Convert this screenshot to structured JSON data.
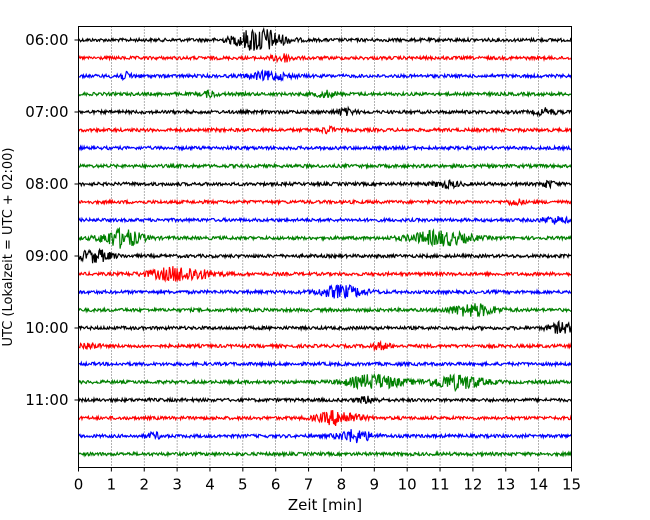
{
  "chart_data": {
    "type": "line",
    "title": "",
    "xlabel": "Zeit  [min]",
    "ylabel": "UTC (Lokalzeit = UTC + 02:00)",
    "xlim": [
      0,
      15
    ],
    "x_ticks": [
      "0",
      "1",
      "2",
      "3",
      "4",
      "5",
      "6",
      "7",
      "8",
      "9",
      "10",
      "11",
      "12",
      "13",
      "14",
      "15"
    ],
    "y_tick_labels": [
      "06:00",
      "07:00",
      "08:00",
      "09:00",
      "10:00",
      "11:00"
    ],
    "grid": "vertical dotted at each minute",
    "trace_colors": [
      "#000000",
      "#ff0000",
      "#0000ff",
      "#008000"
    ],
    "series": [
      {
        "start": "06:00",
        "color": "#000000",
        "events": [
          {
            "t": 5.5,
            "amp": 12,
            "w": 0.7
          }
        ]
      },
      {
        "start": "06:15",
        "color": "#ff0000",
        "events": [
          {
            "t": 6.2,
            "amp": 4,
            "w": 0.3
          }
        ]
      },
      {
        "start": "06:30",
        "color": "#0000ff",
        "events": [
          {
            "t": 5.8,
            "amp": 4,
            "w": 0.6
          },
          {
            "t": 1.4,
            "amp": 3,
            "w": 0.3
          }
        ]
      },
      {
        "start": "06:45",
        "color": "#008000",
        "events": [
          {
            "t": 4.0,
            "amp": 3,
            "w": 0.2
          },
          {
            "t": 7.5,
            "amp": 3,
            "w": 0.3
          }
        ]
      },
      {
        "start": "07:00",
        "color": "#000000",
        "events": [
          {
            "t": 8.1,
            "amp": 3,
            "w": 0.3
          },
          {
            "t": 14.2,
            "amp": 3,
            "w": 0.3
          }
        ]
      },
      {
        "start": "07:15",
        "color": "#ff0000",
        "events": [
          {
            "t": 7.6,
            "amp": 3,
            "w": 0.2
          }
        ]
      },
      {
        "start": "07:30",
        "color": "#0000ff",
        "events": []
      },
      {
        "start": "07:45",
        "color": "#008000",
        "events": []
      },
      {
        "start": "08:00",
        "color": "#000000",
        "events": [
          {
            "t": 11.2,
            "amp": 3,
            "w": 0.4
          },
          {
            "t": 14.3,
            "amp": 3,
            "w": 0.2
          }
        ]
      },
      {
        "start": "08:15",
        "color": "#ff0000",
        "events": [
          {
            "t": 13.3,
            "amp": 3,
            "w": 0.2
          }
        ]
      },
      {
        "start": "08:30",
        "color": "#0000ff",
        "events": [
          {
            "t": 14.5,
            "amp": 3,
            "w": 0.4
          }
        ]
      },
      {
        "start": "08:45",
        "color": "#008000",
        "events": [
          {
            "t": 1.3,
            "amp": 9,
            "w": 0.6
          },
          {
            "t": 11.0,
            "amp": 7,
            "w": 0.9
          }
        ]
      },
      {
        "start": "09:00",
        "color": "#000000",
        "events": [
          {
            "t": 0.5,
            "amp": 6,
            "w": 0.5
          }
        ]
      },
      {
        "start": "09:15",
        "color": "#ff0000",
        "events": [
          {
            "t": 3.1,
            "amp": 7,
            "w": 0.9
          }
        ]
      },
      {
        "start": "09:30",
        "color": "#0000ff",
        "events": [
          {
            "t": 8.0,
            "amp": 6,
            "w": 0.7
          }
        ]
      },
      {
        "start": "09:45",
        "color": "#008000",
        "events": [
          {
            "t": 12.0,
            "amp": 6,
            "w": 0.7
          }
        ]
      },
      {
        "start": "10:00",
        "color": "#000000",
        "events": [
          {
            "t": 14.7,
            "amp": 5,
            "w": 0.4
          }
        ]
      },
      {
        "start": "10:15",
        "color": "#ff0000",
        "events": [
          {
            "t": 0.3,
            "amp": 3,
            "w": 0.3
          },
          {
            "t": 9.2,
            "amp": 3,
            "w": 0.3
          }
        ]
      },
      {
        "start": "10:30",
        "color": "#0000ff",
        "events": []
      },
      {
        "start": "10:45",
        "color": "#008000",
        "events": [
          {
            "t": 9.0,
            "amp": 7,
            "w": 0.8
          },
          {
            "t": 11.5,
            "amp": 7,
            "w": 0.8
          }
        ]
      },
      {
        "start": "11:00",
        "color": "#000000",
        "events": [
          {
            "t": 8.8,
            "amp": 3,
            "w": 0.3
          }
        ]
      },
      {
        "start": "11:15",
        "color": "#ff0000",
        "events": [
          {
            "t": 7.9,
            "amp": 7,
            "w": 0.6
          }
        ]
      },
      {
        "start": "11:30",
        "color": "#0000ff",
        "events": [
          {
            "t": 8.4,
            "amp": 6,
            "w": 0.5
          },
          {
            "t": 2.3,
            "amp": 3,
            "w": 0.2
          }
        ]
      },
      {
        "start": "11:45",
        "color": "#008000",
        "events": []
      }
    ]
  }
}
